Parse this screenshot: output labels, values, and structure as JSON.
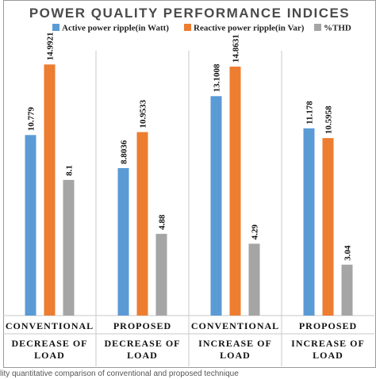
{
  "chart_data": {
    "type": "bar",
    "title": "POWER QUALITY PERFORMANCE INDICES",
    "legend_position": "top",
    "grid": false,
    "ylim": [
      0,
      16
    ],
    "categories": [
      [
        "CONVENTIONAL",
        "DECREASE OF",
        "LOAD"
      ],
      [
        "PROPOSED",
        "DECREASE OF",
        "LOAD"
      ],
      [
        "CONVENTIONAL",
        "INCREASE OF",
        "LOAD"
      ],
      [
        "PROPOSED",
        "INCREASE OF",
        "LOAD"
      ]
    ],
    "series": [
      {
        "name": "Active power ripple(in Watt)",
        "color": "#5b9bd5",
        "values": [
          10.779,
          8.8036,
          13.1008,
          11.178
        ],
        "labels": [
          "10.779",
          "8.8036",
          "13.1008",
          "11.178"
        ]
      },
      {
        "name": "Reactive power ripple(in Var)",
        "color": "#ed7d31",
        "values": [
          14.9921,
          10.9533,
          14.8631,
          10.5958
        ],
        "labels": [
          "14.9921",
          "10.9533",
          "14.8631",
          "10.5958"
        ]
      },
      {
        "name": "%THD",
        "color": "#a5a5a5",
        "values": [
          8.1,
          4.88,
          4.29,
          3.04
        ],
        "labels": [
          "8.1",
          "4.88",
          "4.29",
          "3.04"
        ]
      }
    ]
  },
  "caption": "lity quantitative comparison of conventional and proposed technique"
}
